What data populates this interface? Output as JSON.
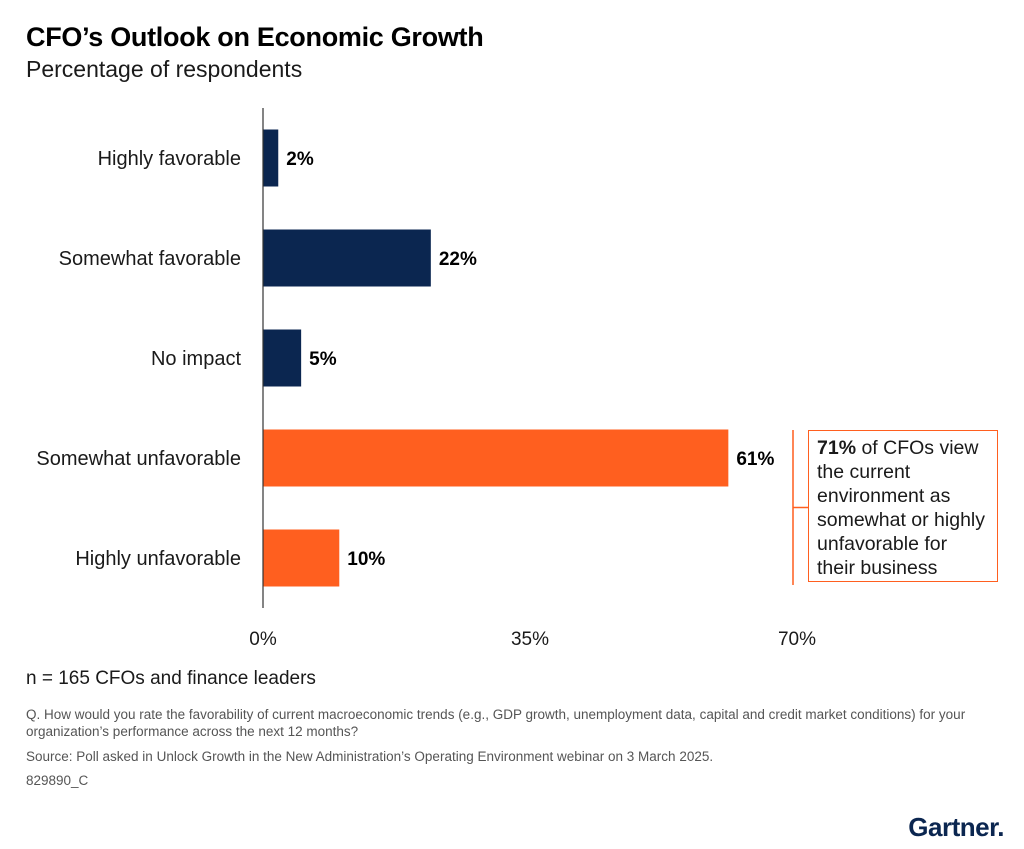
{
  "title": "CFO’s Outlook on Economic Growth",
  "subtitle": "Percentage of respondents",
  "chart_data": {
    "type": "bar",
    "orientation": "horizontal",
    "categories": [
      "Highly favorable",
      "Somewhat favorable",
      "No impact",
      "Somewhat unfavorable",
      "Highly unfavorable"
    ],
    "values": [
      2,
      22,
      5,
      61,
      10
    ],
    "value_labels": [
      "2%",
      "22%",
      "5%",
      "61%",
      "10%"
    ],
    "bar_colors": [
      "#0b2650",
      "#0b2650",
      "#0b2650",
      "#ff5f1f",
      "#ff5f1f"
    ],
    "xlim": [
      0,
      70
    ],
    "xticks": [
      0,
      35,
      70
    ],
    "xtick_labels": [
      "0%",
      "35%",
      "70%"
    ],
    "grid": false,
    "annotation": {
      "bold": "71%",
      "text": " of CFOs view the current environment as somewhat or highly unfavorable for their business",
      "color": "#ff5f1f"
    }
  },
  "footnotes": {
    "n": "n = 165 CFOs and finance leaders",
    "question": "Q. How would you rate the favorability of current macroeconomic trends (e.g., GDP growth, unemployment data, capital and credit market conditions) for your organization’s performance across the next 12 months?",
    "source": "Source: Poll asked in Unlock Growth in the New Administration’s Operating Environment webinar on 3 March 2025.",
    "code": "829890_C"
  },
  "logo": {
    "text": "Gartner",
    "dot": "."
  }
}
